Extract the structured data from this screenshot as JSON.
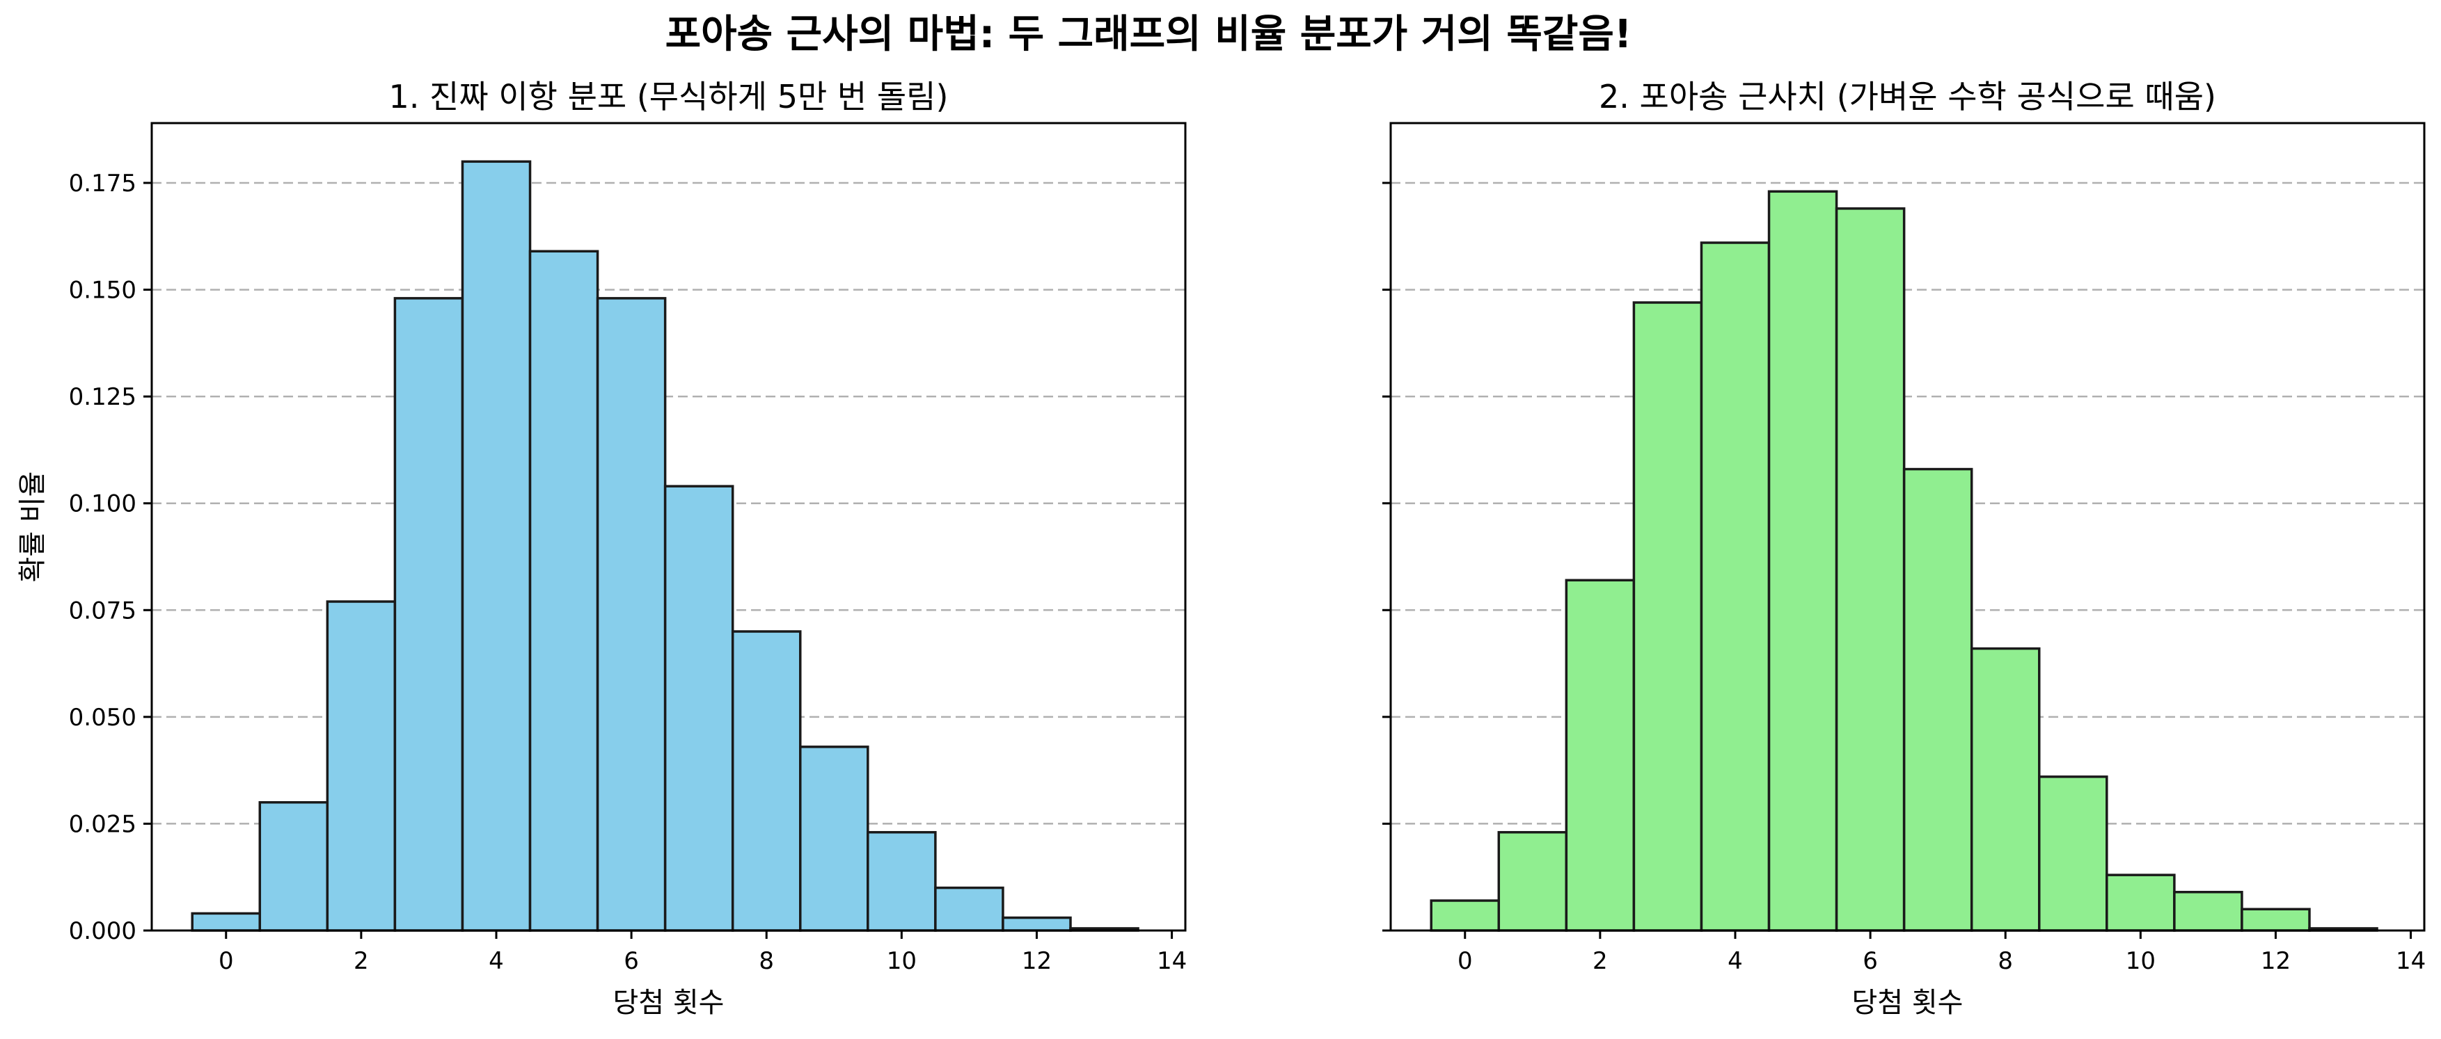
{
  "figure": {
    "suptitle": "포아송 근사의 마법: 두 그래프의 비율 분포가 거의 똑같음!"
  },
  "chart_data": [
    {
      "type": "bar",
      "title": "1. 진짜 이항 분포 (무식하게 5만 번 돌림)",
      "xlabel": "당첨 횟수",
      "ylabel": "확률 비율",
      "x": [
        0,
        1,
        2,
        3,
        4,
        5,
        6,
        7,
        8,
        9,
        10,
        11,
        12,
        13
      ],
      "values": [
        0.004,
        0.03,
        0.077,
        0.148,
        0.18,
        0.159,
        0.148,
        0.104,
        0.07,
        0.043,
        0.023,
        0.01,
        0.003,
        0.0005
      ],
      "xlim": [
        -1.1,
        14.2
      ],
      "ylim": [
        0,
        0.189
      ],
      "xticks": [
        "0",
        "2",
        "4",
        "6",
        "8",
        "10",
        "12",
        "14"
      ],
      "yticks": [
        "0.000",
        "0.025",
        "0.050",
        "0.075",
        "0.100",
        "0.125",
        "0.150",
        "0.175"
      ],
      "grid": "y-dashed",
      "color": "#87ceeb"
    },
    {
      "type": "bar",
      "title": "2. 포아송 근사치 (가벼운 수학 공식으로 때움)",
      "xlabel": "당첨 횟수",
      "ylabel": "",
      "x": [
        0,
        1,
        2,
        3,
        4,
        5,
        6,
        7,
        8,
        9,
        10,
        11,
        12,
        13
      ],
      "values": [
        0.007,
        0.023,
        0.082,
        0.147,
        0.161,
        0.173,
        0.169,
        0.108,
        0.066,
        0.036,
        0.013,
        0.009,
        0.005,
        0.0005
      ],
      "xlim": [
        -1.1,
        14.2
      ],
      "ylim": [
        0,
        0.189
      ],
      "xticks": [
        "0",
        "2",
        "4",
        "6",
        "8",
        "10",
        "12",
        "14"
      ],
      "yticks": [],
      "grid": "y-dashed",
      "color": "#90ee90"
    }
  ]
}
